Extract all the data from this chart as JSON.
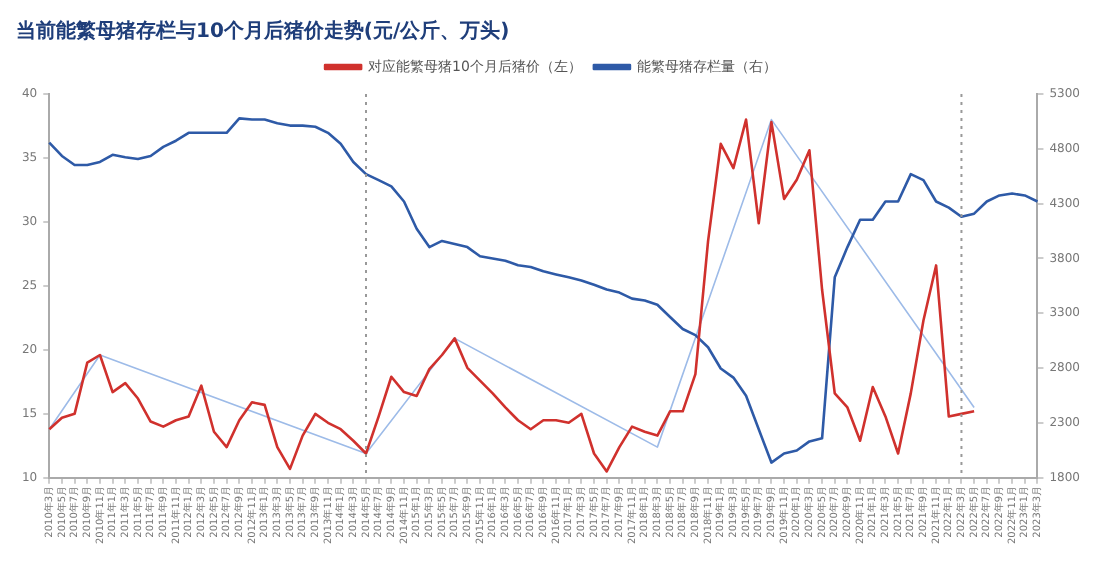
{
  "chart_data": {
    "type": "line",
    "title": "当前能繁母猪存栏与10个月后猪价走势(元/公斤、万头)",
    "categories": [
      "2010年3月",
      "2010年5月",
      "2010年7月",
      "2010年9月",
      "2010年11月",
      "2011年1月",
      "2011年3月",
      "2011年5月",
      "2011年7月",
      "2011年9月",
      "2011年11月",
      "2012年1月",
      "2012年3月",
      "2012年5月",
      "2012年7月",
      "2012年9月",
      "2012年11月",
      "2013年1月",
      "2013年3月",
      "2013年5月",
      "2013年7月",
      "2013年9月",
      "2013年11月",
      "2014年1月",
      "2014年3月",
      "2014年5月",
      "2014年7月",
      "2014年9月",
      "2014年11月",
      "2015年1月",
      "2015年3月",
      "2015年5月",
      "2015年7月",
      "2015年9月",
      "2015年11月",
      "2016年1月",
      "2016年3月",
      "2016年5月",
      "2016年7月",
      "2016年9月",
      "2016年11月",
      "2017年1月",
      "2017年3月",
      "2017年5月",
      "2017年7月",
      "2017年9月",
      "2017年11月",
      "2018年1月",
      "2018年3月",
      "2018年5月",
      "2018年7月",
      "2018年9月",
      "2018年11月",
      "2019年1月",
      "2019年3月",
      "2019年5月",
      "2019年7月",
      "2019年9月",
      "2019年11月",
      "2020年1月",
      "2020年3月",
      "2020年5月",
      "2020年7月",
      "2020年9月",
      "2020年11月",
      "2021年1月",
      "2021年3月",
      "2021年5月",
      "2021年7月",
      "2021年9月",
      "2021年11月",
      "2022年1月",
      "2022年3月",
      "2022年5月",
      "2022年7月",
      "2022年9月",
      "2022年11月",
      "2023年1月",
      "2023年3月"
    ],
    "series": [
      {
        "name": "对应能繁母猪10个月后猪价（左）",
        "color": "#d0312d",
        "values": [
          13.8,
          14.7,
          15.0,
          19.0,
          19.6,
          16.7,
          17.4,
          16.2,
          14.4,
          14.0,
          14.5,
          14.8,
          17.2,
          13.6,
          12.4,
          14.5,
          15.9,
          15.7,
          12.4,
          10.7,
          13.3,
          15.0,
          14.3,
          13.8,
          12.9,
          11.9,
          14.8,
          17.9,
          16.7,
          16.4,
          18.5,
          19.6,
          20.9,
          18.6,
          17.6,
          16.6,
          15.5,
          14.5,
          13.8,
          14.5,
          14.5,
          14.3,
          15.0,
          11.9,
          10.5,
          12.4,
          14.0,
          13.6,
          13.3,
          15.2,
          15.2,
          18.1,
          28.5,
          36.1,
          34.2,
          38.0,
          29.9,
          37.8,
          31.8,
          33.3,
          35.6,
          24.7,
          16.6,
          15.5,
          12.9,
          17.1,
          14.8,
          11.9,
          16.6,
          22.3,
          26.6,
          14.8,
          15.0,
          15.2,
          null,
          null,
          null,
          null,
          null
        ]
      },
      {
        "name": "能繁母猪存栏量（右）",
        "color": "#2e5aa7",
        "axis": "y2",
        "values": [
          4857,
          4735,
          4652,
          4652,
          4680,
          4746,
          4724,
          4707,
          4735,
          4818,
          4874,
          4946,
          4946,
          4946,
          4946,
          5078,
          5067,
          5067,
          5034,
          5012,
          5012,
          5001,
          4946,
          4846,
          4680,
          4569,
          4514,
          4458,
          4320,
          4071,
          3904,
          3960,
          3932,
          3904,
          3821,
          3800,
          3780,
          3738,
          3722,
          3683,
          3655,
          3628,
          3600,
          3561,
          3517,
          3489,
          3434,
          3417,
          3378,
          3267,
          3157,
          3101,
          2991,
          2797,
          2714,
          2548,
          2243,
          1939,
          2022,
          2049,
          2132,
          2160,
          3628,
          3904,
          4154,
          4154,
          4320,
          4320,
          4569,
          4514,
          4320,
          4264,
          4181,
          4209,
          4320,
          4375,
          4392,
          4375,
          4320
        ]
      },
      {
        "color": "#9dbbe8",
        "x": [
          "2010年3月",
          "2010年11月",
          "2014年5月",
          "2015年7月",
          "2018年3月",
          "2019年9月",
          "2022年5月"
        ],
        "values": [
          13.8,
          19.6,
          11.9,
          20.9,
          12.4,
          38.0,
          15.5
        ]
      }
    ],
    "ylim": [
      10,
      40
    ],
    "yticks": [
      10,
      15,
      20,
      25,
      30,
      35,
      40
    ],
    "y2lim": [
      1800,
      5300
    ],
    "y2ticks": [
      1800,
      2300,
      2800,
      3300,
      3800,
      4300,
      4800,
      5300
    ],
    "ref_lines": [
      {
        "axis": "x",
        "value": "2014年5月",
        "color": "#999999",
        "line_style": "dotted"
      },
      {
        "axis": "x",
        "value": "2022年3月",
        "color": "#999999",
        "line_style": "dotted"
      }
    ],
    "grid": false,
    "legend": "top",
    "marker": "none",
    "line_style": "solid"
  }
}
